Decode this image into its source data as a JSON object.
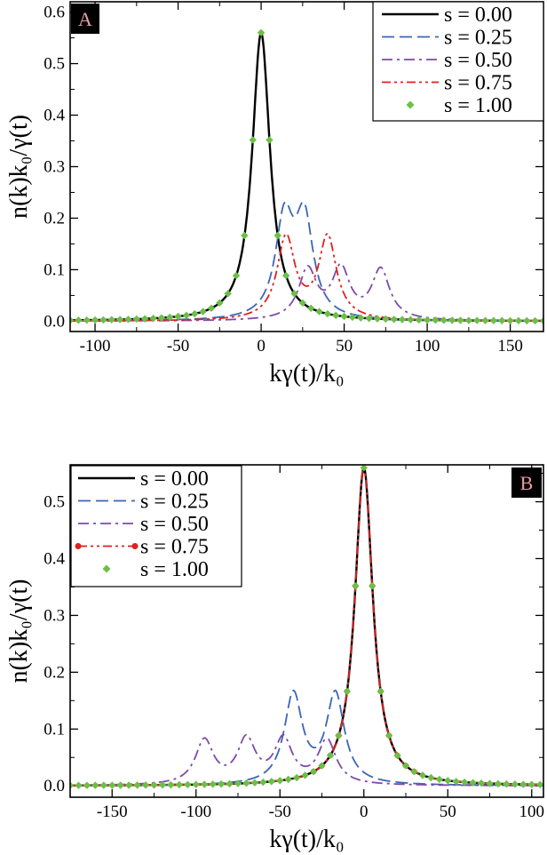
{
  "chart_data": [
    {
      "type": "line",
      "panel_label": "A",
      "xlabel": "kγ(t)/k₀",
      "ylabel": "n(k)k₀/γ(t)",
      "xlim": [
        -115,
        170
      ],
      "ylim": [
        -0.02,
        0.62
      ],
      "xticks": [
        -100,
        -50,
        0,
        50,
        100,
        150
      ],
      "yticks": [
        0.0,
        0.1,
        0.2,
        0.3,
        0.4,
        0.5,
        0.6
      ],
      "xtick_labels": [
        "-100",
        "-50",
        "0",
        "50",
        "100",
        "150"
      ],
      "ytick_labels": [
        "0.0",
        "0.1",
        "0.2",
        "0.3",
        "0.4",
        "0.5",
        "0.6"
      ],
      "legend_position": "top-right",
      "series": [
        {
          "name": "s = 0.00",
          "color": "#000000",
          "style": "solid",
          "centers": [
            0
          ],
          "width": 6.5,
          "peak": 0.56
        },
        {
          "name": "s = 0.25",
          "color": "#3a66b5",
          "style": "dashed",
          "centers": [
            14,
            26
          ],
          "width": 6.5,
          "peak": 0.23
        },
        {
          "name": "s = 0.50",
          "color": "#7d4aa8",
          "style": "dashdot",
          "centers": [
            28,
            48,
            72
          ],
          "width": 6.5,
          "peak": 0.112
        },
        {
          "name": "s = 0.75",
          "color": "#e02020",
          "style": "dashdotdot",
          "centers": [
            15,
            40
          ],
          "width": 6.5,
          "peak": 0.17
        },
        {
          "name": "s = 1.00",
          "color": "#6cbf47",
          "style": "diamonds",
          "centers": [
            0
          ],
          "width": 6.5,
          "peak": 0.56
        }
      ]
    },
    {
      "type": "line",
      "panel_label": "B",
      "xlabel": "kγ(t)/k₀",
      "ylabel": "n(k)k₀/γ(t)",
      "xlim": [
        -175,
        107
      ],
      "ylim": [
        -0.02,
        0.565
      ],
      "xticks": [
        -150,
        -100,
        -50,
        0,
        50,
        100
      ],
      "yticks": [
        0.0,
        0.1,
        0.2,
        0.3,
        0.4,
        0.5
      ],
      "xtick_labels": [
        "-150",
        "-100",
        "-50",
        "0",
        "50",
        "100"
      ],
      "ytick_labels": [
        "0.0",
        "0.1",
        "0.2",
        "0.3",
        "0.4",
        "0.5"
      ],
      "legend_position": "top-left",
      "series": [
        {
          "name": "s = 0.00",
          "color": "#000000",
          "style": "solid",
          "centers": [
            0
          ],
          "width": 6.5,
          "peak": 0.56
        },
        {
          "name": "s = 0.25",
          "color": "#3a66b5",
          "style": "dashed",
          "centers": [
            -42,
            -17
          ],
          "width": 6.5,
          "peak": 0.168
        },
        {
          "name": "s = 0.50",
          "color": "#7d4aa8",
          "style": "dashdot",
          "centers": [
            -95,
            -70,
            -48,
            -22
          ],
          "width": 6.5,
          "peak": 0.09
        },
        {
          "name": "s = 0.75",
          "color": "#e02020",
          "style": "dashdotdot-dots",
          "centers": [
            0
          ],
          "width": 6.5,
          "peak": 0.56
        },
        {
          "name": "s = 1.00",
          "color": "#6cbf47",
          "style": "diamonds",
          "centers": [
            0
          ],
          "width": 6.5,
          "peak": 0.56
        }
      ]
    }
  ]
}
